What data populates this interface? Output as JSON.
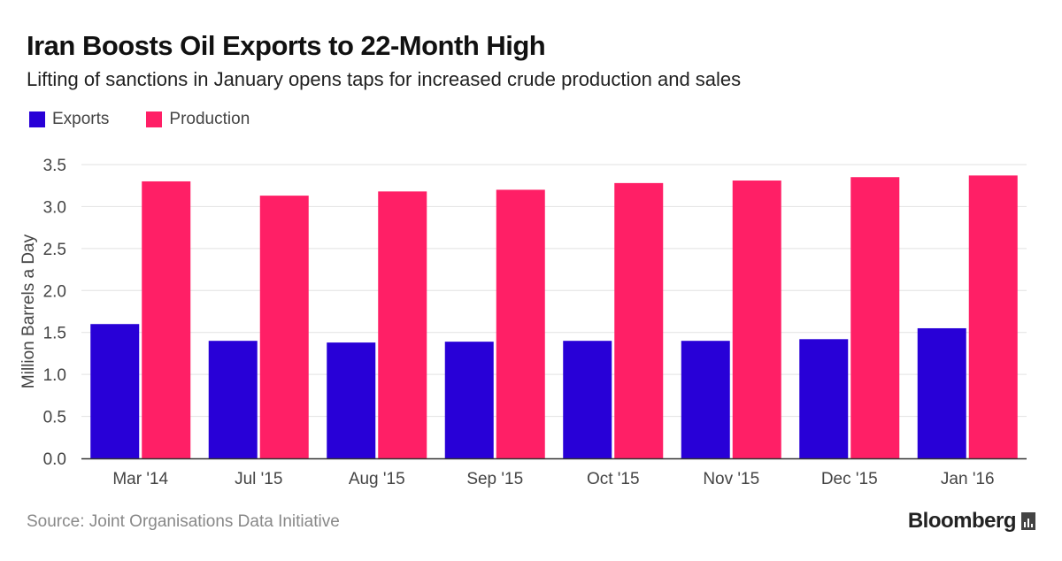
{
  "colors": {
    "exports": "#2800d7",
    "production": "#ff1f66",
    "grid": "#e2e2e2",
    "axis": "#333333"
  },
  "header": {
    "title": "Iran Boosts Oil Exports to 22-Month High",
    "subtitle": "Lifting of sanctions in January opens taps for increased crude production and sales"
  },
  "footer": {
    "source": "Source: Joint Organisations Data Initiative",
    "brand": "Bloomberg"
  },
  "chart_data": {
    "type": "bar",
    "categories": [
      "Mar '14",
      "Jul '15",
      "Aug '15",
      "Sep '15",
      "Oct '15",
      "Nov '15",
      "Dec '15",
      "Jan '16"
    ],
    "series": [
      {
        "name": "Exports",
        "values": [
          1.6,
          1.4,
          1.38,
          1.39,
          1.4,
          1.4,
          1.42,
          1.55
        ]
      },
      {
        "name": "Production",
        "values": [
          3.3,
          3.13,
          3.18,
          3.2,
          3.28,
          3.31,
          3.35,
          3.37
        ]
      }
    ],
    "title": "Iran Boosts Oil Exports to 22-Month High",
    "subtitle": "Lifting of sanctions in January opens taps for increased crude production and sales",
    "xlabel": "",
    "ylabel": "Million Barrels a Day",
    "ylim": [
      0,
      3.5
    ],
    "yticks": [
      "0.0",
      "0.5",
      "1.0",
      "1.5",
      "2.0",
      "2.5",
      "3.0",
      "3.5"
    ],
    "grid": true,
    "legend": "top-left"
  }
}
